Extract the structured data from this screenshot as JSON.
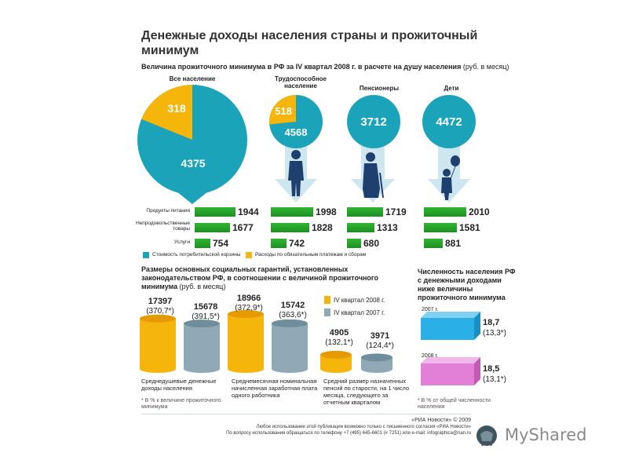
{
  "header": {
    "title": "Денежные доходы населения страны и прожиточный минимум",
    "subtitle": "Величина прожиточного минимума в РФ за IV квартал 2008 г. в расчете на душу населения",
    "subtitle_unit": "(руб. в месяц)"
  },
  "colors": {
    "teal": "#1aa3b9",
    "gold": "#f5b50a",
    "green": "#32b534",
    "gray_blue": "#8fa9b6",
    "cyan_box": "#2ab0e6",
    "pink_box": "#e27fd6"
  },
  "legend_top": {
    "basket": "Стоимость потребительской корзины",
    "payments": "Расходы по обязательным платежам и сборам"
  },
  "chart_data": [
    {
      "type": "pie",
      "groups": [
        {
          "label": "Все население",
          "basket": 4375,
          "payments": 318
        },
        {
          "label": "Трудоспособное население",
          "basket": 4568,
          "payments": 518
        },
        {
          "label": "Пенсионеры",
          "basket": 3712,
          "payments": null
        },
        {
          "label": "Дети",
          "basket": 4472,
          "payments": null
        }
      ]
    },
    {
      "type": "bar",
      "categories": [
        "Продукты питания",
        "Непродовольственные товары",
        "Услуги"
      ],
      "series": [
        {
          "name": "Все население",
          "values": [
            1944,
            1677,
            754
          ]
        },
        {
          "name": "Трудоспособное население",
          "values": [
            1998,
            1828,
            742
          ]
        },
        {
          "name": "Пенсионеры",
          "values": [
            1719,
            1313,
            680
          ]
        },
        {
          "name": "Дети",
          "values": [
            2010,
            1581,
            881
          ]
        }
      ]
    },
    {
      "type": "bar",
      "title": "Размеры основных социальных гарантий, установленных законодательством РФ, в соотношении с величиной прожиточного минимума",
      "title_unit": "(руб. в месяц)",
      "legend": [
        "IV квартал 2008 г.",
        "IV квартал 2007 г."
      ],
      "groups": [
        {
          "label": "Среднедушевые денежные доходы населения",
          "v2008": 17397,
          "p2008": "(370,7*)",
          "v2007": 15678,
          "p2007": "(391,5*)"
        },
        {
          "label": "Среднемесячная номинальная начисленная заработная плата одного работника",
          "v2008": 18966,
          "p2008": "(372,9*)",
          "v2007": 15742,
          "p2007": "(363,6*)"
        },
        {
          "label": "Средний размер назначенных пенсий по старости, на 1 число месяца, следующего за отчетным кварталом",
          "v2008": 4905,
          "p2008": "(132,1*)",
          "v2007": 3971,
          "p2007": "(124,4*)"
        }
      ],
      "note": "* В % к величине прожиточного минимума"
    },
    {
      "type": "bar",
      "title": "Численность населения РФ с денежными доходами ниже величины прожиточного минимума",
      "items": [
        {
          "year": "2007 г.",
          "value": "18,7",
          "pct": "(13,3*)"
        },
        {
          "year": "2008 г.",
          "value": "18,5",
          "pct": "(13,1*)"
        }
      ],
      "note": "* В % от общей численности населения"
    }
  ],
  "footer": {
    "credit": "«РИА Новости» © 2009",
    "line1": "Любое использование этой публикации возможно только с письменного согласия «РИА Новости»",
    "line2": "По вопросу использования обращаться по телефону +7 (495) 645-6601 (# 7251) или e-mail: infographica@rian.ru"
  },
  "watermark": "MyShared"
}
